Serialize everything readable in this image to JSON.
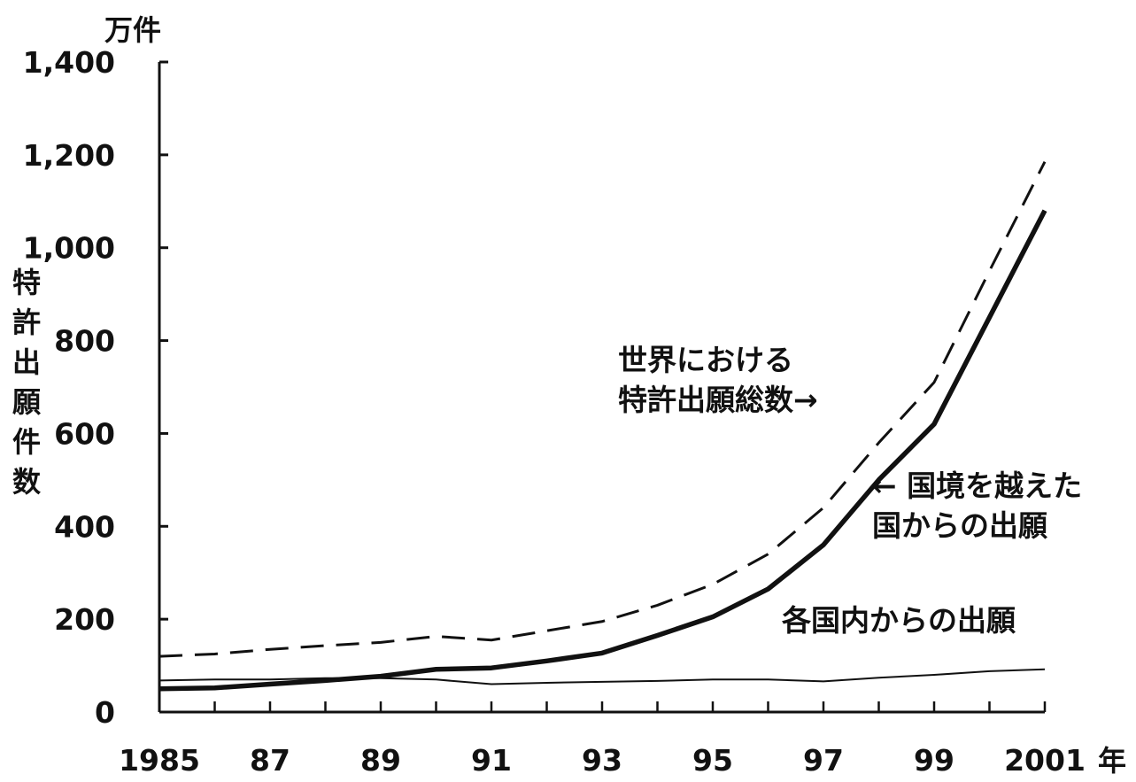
{
  "chart_data": {
    "type": "line",
    "y_unit": "万件",
    "x_unit": "年",
    "ylabel": "特許出願件数",
    "ylim": [
      0,
      1400
    ],
    "y_ticks": [
      0,
      200,
      400,
      600,
      800,
      1000,
      1200,
      1400
    ],
    "y_tick_labels": [
      "0",
      "200",
      "400",
      "600",
      "800",
      "1,000",
      "1,200",
      "1,400"
    ],
    "xlim": [
      1985,
      2001
    ],
    "x_ticks": [
      1985,
      1987,
      1989,
      1991,
      1993,
      1995,
      1997,
      1999,
      2001
    ],
    "x_tick_labels": [
      "1985",
      "87",
      "89",
      "91",
      "93",
      "95",
      "97",
      "99",
      "2001"
    ],
    "grid": false,
    "x": [
      1985,
      1986,
      1987,
      1988,
      1989,
      1990,
      1991,
      1992,
      1993,
      1994,
      1995,
      1996,
      1997,
      1998,
      1999,
      2000,
      2001
    ],
    "series": [
      {
        "name": "世界における特許出願総数",
        "style": "dashed",
        "values": [
          120,
          125,
          135,
          143,
          150,
          163,
          155,
          175,
          195,
          230,
          275,
          340,
          440,
          580,
          710,
          950,
          1185
        ]
      },
      {
        "name": "国境を越えた国からの出願",
        "style": "thick",
        "values": [
          50,
          52,
          60,
          68,
          77,
          92,
          95,
          110,
          127,
          165,
          205,
          265,
          360,
          500,
          620,
          850,
          1080
        ]
      },
      {
        "name": "各国内からの出願",
        "style": "thin",
        "values": [
          68,
          70,
          70,
          73,
          73,
          70,
          60,
          63,
          65,
          67,
          70,
          70,
          66,
          74,
          80,
          88,
          92
        ]
      }
    ],
    "annotations": [
      {
        "lines": [
          "世界における",
          "特許出願総数→"
        ],
        "series": "世界における特許出願総数"
      },
      {
        "lines": [
          "← 国境を越えた",
          "国からの出願"
        ],
        "series": "国境を越えた国からの出願"
      },
      {
        "lines": [
          "各国内からの出願"
        ],
        "series": "各国内からの出願"
      }
    ]
  }
}
